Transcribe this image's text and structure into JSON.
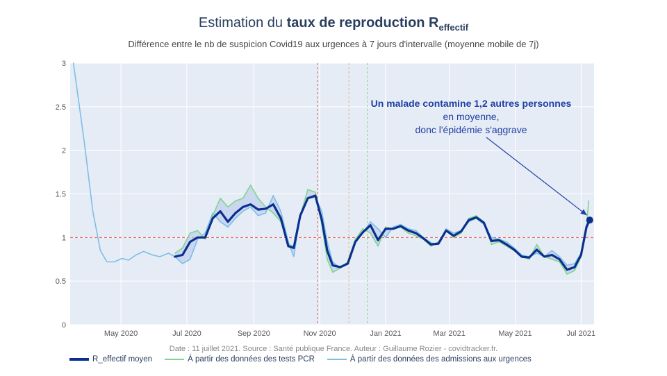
{
  "title": {
    "prefix": "Estimation du ",
    "bold": "taux de reproduction R",
    "sub": "effectif"
  },
  "subtitle": "Différence entre le nb de suspicion Covid19 aux urgences à 7 jours d'intervalle (moyenne mobile de 7j)",
  "annotation": {
    "bold": "Un malade contamine 1,2 autres personnes",
    "rest1": " en moyenne,",
    "rest2": "donc l'épidémie s'aggrave"
  },
  "footer": "Date : 11 juillet 2021. Source : Santé publique France. Auteur : Guillaume Rozier - covidtracker.fr.",
  "legend": [
    {
      "label": "R_effectif moyen",
      "color": "#0b2f8f"
    },
    {
      "label": "À partir des données des tests PCR",
      "color": "#7fd68a"
    },
    {
      "label": "À partir des données des admissions aux urgences",
      "color": "#7cbfe6"
    }
  ],
  "colors": {
    "plot_bg": "#e6ecf5",
    "mean": "#0b2f8f",
    "pcr": "#7fd68a",
    "urgences": "#7cbfe6",
    "band": "#b9c8ec",
    "threshold": "#e8534a",
    "vline_red": "#e8534a",
    "vline_orange": "#f2b27a",
    "vline_green": "#7fd68a"
  },
  "chart_data": {
    "type": "line",
    "x_start": "2020-03-15",
    "x_end": "2021-07-13",
    "xticks": [
      {
        "date": "2020-05-01",
        "label": "May 2020"
      },
      {
        "date": "2020-07-01",
        "label": "Jul 2020"
      },
      {
        "date": "2020-09-01",
        "label": "Sep 2020"
      },
      {
        "date": "2020-11-01",
        "label": "Nov 2020"
      },
      {
        "date": "2021-01-01",
        "label": "Jan 2021"
      },
      {
        "date": "2021-03-01",
        "label": "Mar 2021"
      },
      {
        "date": "2021-05-01",
        "label": "May 2021"
      },
      {
        "date": "2021-07-01",
        "label": "Jul 2021"
      }
    ],
    "ylim": [
      0,
      3
    ],
    "yticks": [
      {
        "v": 0,
        "label": "0"
      },
      {
        "v": 0.5,
        "label": "0.5"
      },
      {
        "v": 1,
        "label": "1"
      },
      {
        "v": 1.5,
        "label": "1.5"
      },
      {
        "v": 2,
        "label": "2"
      },
      {
        "v": 2.5,
        "label": "2.5"
      },
      {
        "v": 3,
        "label": "3"
      }
    ],
    "threshold": 1,
    "vlines": [
      {
        "date": "2020-10-30",
        "color": "vline_red"
      },
      {
        "date": "2020-11-28",
        "color": "vline_orange"
      },
      {
        "date": "2020-12-15",
        "color": "vline_green"
      }
    ],
    "series": [
      {
        "name": "À partir des données des admissions aux urgences",
        "color": "urgences",
        "width": 1.6,
        "points": [
          [
            "2020-03-18",
            3.0
          ],
          [
            "2020-03-28",
            2.1
          ],
          [
            "2020-04-05",
            1.3
          ],
          [
            "2020-04-12",
            0.85
          ],
          [
            "2020-04-18",
            0.72
          ],
          [
            "2020-04-25",
            0.72
          ],
          [
            "2020-05-02",
            0.76
          ],
          [
            "2020-05-08",
            0.74
          ],
          [
            "2020-05-15",
            0.8
          ],
          [
            "2020-05-22",
            0.84
          ],
          [
            "2020-05-30",
            0.8
          ],
          [
            "2020-06-06",
            0.78
          ],
          [
            "2020-06-14",
            0.82
          ],
          [
            "2020-06-20",
            0.78
          ],
          [
            "2020-06-27",
            0.7
          ],
          [
            "2020-07-04",
            0.75
          ],
          [
            "2020-07-11",
            0.98
          ],
          [
            "2020-07-18",
            1.05
          ],
          [
            "2020-07-25",
            1.28
          ],
          [
            "2020-08-01",
            1.18
          ],
          [
            "2020-08-08",
            1.12
          ],
          [
            "2020-08-15",
            1.22
          ],
          [
            "2020-08-22",
            1.3
          ],
          [
            "2020-08-29",
            1.35
          ],
          [
            "2020-09-05",
            1.25
          ],
          [
            "2020-09-12",
            1.28
          ],
          [
            "2020-09-19",
            1.48
          ],
          [
            "2020-09-26",
            1.3
          ],
          [
            "2020-10-03",
            0.95
          ],
          [
            "2020-10-08",
            0.78
          ],
          [
            "2020-10-14",
            1.25
          ],
          [
            "2020-10-21",
            1.45
          ],
          [
            "2020-10-28",
            1.46
          ],
          [
            "2020-11-03",
            1.3
          ],
          [
            "2020-11-08",
            0.95
          ],
          [
            "2020-11-13",
            0.72
          ],
          [
            "2020-11-20",
            0.65
          ],
          [
            "2020-11-27",
            0.7
          ],
          [
            "2020-12-04",
            0.95
          ],
          [
            "2020-12-11",
            1.05
          ],
          [
            "2020-12-18",
            1.18
          ],
          [
            "2020-12-25",
            1.1
          ],
          [
            "2021-01-01",
            1.0
          ],
          [
            "2021-01-08",
            1.12
          ],
          [
            "2021-01-15",
            1.15
          ],
          [
            "2021-01-22",
            1.1
          ],
          [
            "2021-01-29",
            1.08
          ],
          [
            "2021-02-05",
            1.0
          ],
          [
            "2021-02-12",
            0.94
          ],
          [
            "2021-02-19",
            0.92
          ],
          [
            "2021-02-26",
            1.1
          ],
          [
            "2021-03-05",
            1.05
          ],
          [
            "2021-03-12",
            1.08
          ],
          [
            "2021-03-19",
            1.18
          ],
          [
            "2021-03-26",
            1.22
          ],
          [
            "2021-04-02",
            1.15
          ],
          [
            "2021-04-09",
            1.0
          ],
          [
            "2021-04-16",
            0.98
          ],
          [
            "2021-04-23",
            0.95
          ],
          [
            "2021-04-30",
            0.88
          ],
          [
            "2021-05-07",
            0.8
          ],
          [
            "2021-05-14",
            0.78
          ],
          [
            "2021-05-21",
            0.82
          ],
          [
            "2021-05-28",
            0.78
          ],
          [
            "2021-06-04",
            0.85
          ],
          [
            "2021-06-11",
            0.78
          ],
          [
            "2021-06-18",
            0.68
          ],
          [
            "2021-06-25",
            0.7
          ],
          [
            "2021-07-01",
            0.82
          ],
          [
            "2021-07-06",
            1.15
          ]
        ]
      },
      {
        "name": "À partir des données des tests PCR",
        "color": "pcr",
        "width": 1.6,
        "points": [
          [
            "2020-06-20",
            0.82
          ],
          [
            "2020-06-27",
            0.88
          ],
          [
            "2020-07-04",
            1.05
          ],
          [
            "2020-07-11",
            1.08
          ],
          [
            "2020-07-18",
            0.98
          ],
          [
            "2020-07-25",
            1.25
          ],
          [
            "2020-08-01",
            1.45
          ],
          [
            "2020-08-08",
            1.35
          ],
          [
            "2020-08-15",
            1.42
          ],
          [
            "2020-08-22",
            1.45
          ],
          [
            "2020-08-29",
            1.6
          ],
          [
            "2020-09-05",
            1.45
          ],
          [
            "2020-09-12",
            1.35
          ],
          [
            "2020-09-19",
            1.28
          ],
          [
            "2020-09-26",
            1.18
          ],
          [
            "2020-10-03",
            0.92
          ],
          [
            "2020-10-08",
            0.9
          ],
          [
            "2020-10-14",
            1.25
          ],
          [
            "2020-10-21",
            1.55
          ],
          [
            "2020-10-28",
            1.52
          ],
          [
            "2020-11-03",
            1.15
          ],
          [
            "2020-11-08",
            0.75
          ],
          [
            "2020-11-13",
            0.6
          ],
          [
            "2020-11-20",
            0.65
          ],
          [
            "2020-11-27",
            0.72
          ],
          [
            "2020-12-04",
            0.98
          ],
          [
            "2020-12-11",
            1.1
          ],
          [
            "2020-12-18",
            1.05
          ],
          [
            "2020-12-25",
            0.9
          ],
          [
            "2021-01-01",
            1.12
          ],
          [
            "2021-01-08",
            1.1
          ],
          [
            "2021-01-15",
            1.12
          ],
          [
            "2021-01-22",
            1.05
          ],
          [
            "2021-01-29",
            1.02
          ],
          [
            "2021-02-05",
            0.98
          ],
          [
            "2021-02-12",
            0.9
          ],
          [
            "2021-02-19",
            0.95
          ],
          [
            "2021-02-26",
            1.08
          ],
          [
            "2021-03-05",
            1.0
          ],
          [
            "2021-03-12",
            1.05
          ],
          [
            "2021-03-19",
            1.22
          ],
          [
            "2021-03-26",
            1.25
          ],
          [
            "2021-04-02",
            1.18
          ],
          [
            "2021-04-09",
            0.92
          ],
          [
            "2021-04-16",
            0.95
          ],
          [
            "2021-04-23",
            0.9
          ],
          [
            "2021-04-30",
            0.85
          ],
          [
            "2021-05-07",
            0.78
          ],
          [
            "2021-05-14",
            0.75
          ],
          [
            "2021-05-21",
            0.92
          ],
          [
            "2021-05-28",
            0.78
          ],
          [
            "2021-06-04",
            0.75
          ],
          [
            "2021-06-11",
            0.72
          ],
          [
            "2021-06-18",
            0.58
          ],
          [
            "2021-06-25",
            0.62
          ],
          [
            "2021-07-01",
            0.78
          ],
          [
            "2021-07-06",
            1.1
          ],
          [
            "2021-07-08",
            1.42
          ]
        ]
      },
      {
        "name": "R_effectif moyen",
        "color": "mean",
        "width": 3.2,
        "points": [
          [
            "2020-06-20",
            0.78
          ],
          [
            "2020-06-27",
            0.8
          ],
          [
            "2020-07-04",
            0.95
          ],
          [
            "2020-07-11",
            1.0
          ],
          [
            "2020-07-18",
            1.0
          ],
          [
            "2020-07-25",
            1.22
          ],
          [
            "2020-08-01",
            1.3
          ],
          [
            "2020-08-08",
            1.18
          ],
          [
            "2020-08-15",
            1.28
          ],
          [
            "2020-08-22",
            1.35
          ],
          [
            "2020-08-29",
            1.38
          ],
          [
            "2020-09-05",
            1.32
          ],
          [
            "2020-09-12",
            1.33
          ],
          [
            "2020-09-19",
            1.38
          ],
          [
            "2020-09-26",
            1.22
          ],
          [
            "2020-10-03",
            0.9
          ],
          [
            "2020-10-08",
            0.88
          ],
          [
            "2020-10-14",
            1.25
          ],
          [
            "2020-10-21",
            1.45
          ],
          [
            "2020-10-28",
            1.48
          ],
          [
            "2020-11-03",
            1.2
          ],
          [
            "2020-11-08",
            0.85
          ],
          [
            "2020-11-13",
            0.68
          ],
          [
            "2020-11-20",
            0.66
          ],
          [
            "2020-11-27",
            0.7
          ],
          [
            "2020-12-04",
            0.95
          ],
          [
            "2020-12-11",
            1.06
          ],
          [
            "2020-12-18",
            1.14
          ],
          [
            "2020-12-25",
            0.97
          ],
          [
            "2021-01-01",
            1.1
          ],
          [
            "2021-01-08",
            1.1
          ],
          [
            "2021-01-15",
            1.13
          ],
          [
            "2021-01-22",
            1.08
          ],
          [
            "2021-01-29",
            1.05
          ],
          [
            "2021-02-05",
            0.99
          ],
          [
            "2021-02-12",
            0.92
          ],
          [
            "2021-02-19",
            0.93
          ],
          [
            "2021-02-26",
            1.08
          ],
          [
            "2021-03-05",
            1.02
          ],
          [
            "2021-03-12",
            1.07
          ],
          [
            "2021-03-19",
            1.2
          ],
          [
            "2021-03-26",
            1.23
          ],
          [
            "2021-04-02",
            1.17
          ],
          [
            "2021-04-09",
            0.96
          ],
          [
            "2021-04-16",
            0.97
          ],
          [
            "2021-04-23",
            0.92
          ],
          [
            "2021-04-30",
            0.86
          ],
          [
            "2021-05-07",
            0.78
          ],
          [
            "2021-05-14",
            0.77
          ],
          [
            "2021-05-21",
            0.86
          ],
          [
            "2021-05-28",
            0.78
          ],
          [
            "2021-06-04",
            0.8
          ],
          [
            "2021-06-11",
            0.75
          ],
          [
            "2021-06-18",
            0.63
          ],
          [
            "2021-06-25",
            0.66
          ],
          [
            "2021-07-01",
            0.8
          ],
          [
            "2021-07-06",
            1.12
          ],
          [
            "2021-07-09",
            1.2
          ]
        ]
      }
    ],
    "last_point": {
      "date": "2021-07-09",
      "value": 1.2
    }
  }
}
